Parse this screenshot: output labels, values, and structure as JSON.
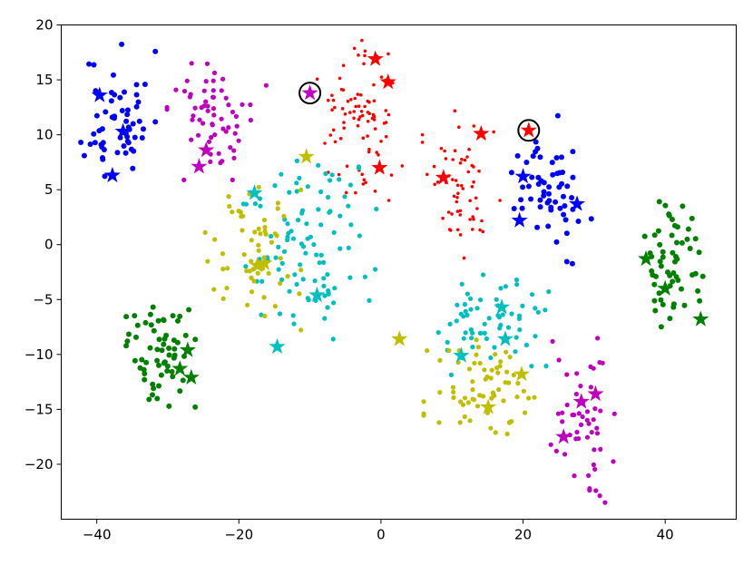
{
  "chart_data": {
    "type": "scatter",
    "title": "",
    "xlabel": "",
    "ylabel": "",
    "xlim": [
      -45,
      50
    ],
    "ylim": [
      -25,
      20
    ],
    "xticks": [
      -40,
      -20,
      0,
      20,
      40
    ],
    "yticks": [
      -20,
      -15,
      -10,
      -5,
      0,
      5,
      10,
      15,
      20
    ],
    "xtick_labels": [
      "−40",
      "−20",
      "0",
      "20",
      "40"
    ],
    "ytick_labels": [
      "−20",
      "−15",
      "−10",
      "−5",
      "0",
      "5",
      "10",
      "15",
      "20"
    ],
    "grid": false,
    "legend": "none",
    "clusters": [
      {
        "color": "#0000ff",
        "center": [
          -37,
          11.5
        ],
        "spread": [
          2.8,
          3.6
        ],
        "n": 58,
        "seed": 11,
        "size": 3.0
      },
      {
        "color": "#bf00bf",
        "center": [
          -23,
          11.5
        ],
        "spread": [
          3.8,
          3.0
        ],
        "n": 62,
        "seed": 12,
        "size": 2.6
      },
      {
        "color": "#ff0000",
        "center": [
          -3,
          11.5
        ],
        "spread": [
          3.2,
          4.0
        ],
        "n": 85,
        "seed": 13,
        "size": 1.8
      },
      {
        "color": "#ff0000",
        "center": [
          12,
          5.5
        ],
        "spread": [
          3.3,
          3.6
        ],
        "n": 60,
        "seed": 14,
        "size": 1.8
      },
      {
        "color": "#0000ff",
        "center": [
          24,
          5.0
        ],
        "spread": [
          3.0,
          3.6
        ],
        "n": 58,
        "seed": 15,
        "size": 3.0
      },
      {
        "color": "#00bfbf",
        "center": [
          -10,
          0.0
        ],
        "spread": [
          5.0,
          4.6
        ],
        "n": 100,
        "seed": 16,
        "size": 2.6
      },
      {
        "color": "#bfbf00",
        "center": [
          -18,
          -1.5
        ],
        "spread": [
          3.6,
          3.6
        ],
        "n": 58,
        "seed": 17,
        "size": 2.6
      },
      {
        "color": "#008000",
        "center": [
          -31,
          -10
        ],
        "spread": [
          2.6,
          2.8
        ],
        "n": 62,
        "seed": 18,
        "size": 3.0
      },
      {
        "color": "#008000",
        "center": [
          41,
          -1.5
        ],
        "spread": [
          2.3,
          3.2
        ],
        "n": 58,
        "seed": 19,
        "size": 3.0
      },
      {
        "color": "#00bfbf",
        "center": [
          15,
          -7.0
        ],
        "spread": [
          4.6,
          2.6
        ],
        "n": 62,
        "seed": 20,
        "size": 2.6
      },
      {
        "color": "#bfbf00",
        "center": [
          15,
          -13.5
        ],
        "spread": [
          4.8,
          2.6
        ],
        "n": 68,
        "seed": 21,
        "size": 2.6
      },
      {
        "color": "#bf00bf",
        "center": [
          28,
          -16
        ],
        "spread": [
          2.6,
          4.0
        ],
        "n": 52,
        "seed": 22,
        "size": 2.6
      }
    ],
    "stars": [
      {
        "color": "#0000ff",
        "x": -39.6,
        "y": 13.6
      },
      {
        "color": "#0000ff",
        "x": -36.3,
        "y": 10.3
      },
      {
        "color": "#0000ff",
        "x": -37.8,
        "y": 6.3
      },
      {
        "color": "#bf00bf",
        "x": -24.6,
        "y": 8.6
      },
      {
        "color": "#bf00bf",
        "x": -25.6,
        "y": 7.1
      },
      {
        "color": "#bf00bf",
        "x": -10.0,
        "y": 13.8
      },
      {
        "color": "#ff0000",
        "x": -0.8,
        "y": 16.9
      },
      {
        "color": "#ff0000",
        "x": 1.0,
        "y": 14.8
      },
      {
        "color": "#ff0000",
        "x": -0.2,
        "y": 7.0
      },
      {
        "color": "#ff0000",
        "x": 14.1,
        "y": 10.1
      },
      {
        "color": "#ff0000",
        "x": 8.8,
        "y": 6.1
      },
      {
        "color": "#ff0000",
        "x": 20.8,
        "y": 10.4
      },
      {
        "color": "#0000ff",
        "x": 20.0,
        "y": 6.2
      },
      {
        "color": "#0000ff",
        "x": 19.5,
        "y": 2.2
      },
      {
        "color": "#0000ff",
        "x": 27.6,
        "y": 3.7
      },
      {
        "color": "#00bfbf",
        "x": -17.8,
        "y": 4.7
      },
      {
        "color": "#bfbf00",
        "x": -10.5,
        "y": 8.0
      },
      {
        "color": "#bfbf00",
        "x": -17.4,
        "y": -1.9
      },
      {
        "color": "#bfbf00",
        "x": -16.4,
        "y": -1.7
      },
      {
        "color": "#00bfbf",
        "x": -9.0,
        "y": -4.6
      },
      {
        "color": "#00bfbf",
        "x": -14.6,
        "y": -9.3
      },
      {
        "color": "#008000",
        "x": -27.2,
        "y": -9.6
      },
      {
        "color": "#008000",
        "x": -28.3,
        "y": -11.3
      },
      {
        "color": "#008000",
        "x": -26.7,
        "y": -12.1
      },
      {
        "color": "#008000",
        "x": 37.3,
        "y": -1.3
      },
      {
        "color": "#008000",
        "x": 40.0,
        "y": -4.0
      },
      {
        "color": "#008000",
        "x": 45.0,
        "y": -6.8
      },
      {
        "color": "#bfbf00",
        "x": 2.6,
        "y": -8.6
      },
      {
        "color": "#00bfbf",
        "x": 11.3,
        "y": -10.1
      },
      {
        "color": "#00bfbf",
        "x": 17.0,
        "y": -5.7
      },
      {
        "color": "#00bfbf",
        "x": 17.5,
        "y": -8.6
      },
      {
        "color": "#bfbf00",
        "x": 19.8,
        "y": -11.8
      },
      {
        "color": "#bfbf00",
        "x": 15.1,
        "y": -14.8
      },
      {
        "color": "#bf00bf",
        "x": 28.2,
        "y": -14.3
      },
      {
        "color": "#bf00bf",
        "x": 30.2,
        "y": -13.6
      },
      {
        "color": "#bf00bf",
        "x": 25.7,
        "y": -17.5
      }
    ],
    "circled_points": [
      {
        "x": -10.0,
        "y": 13.8
      },
      {
        "x": 20.8,
        "y": 10.4
      }
    ]
  }
}
